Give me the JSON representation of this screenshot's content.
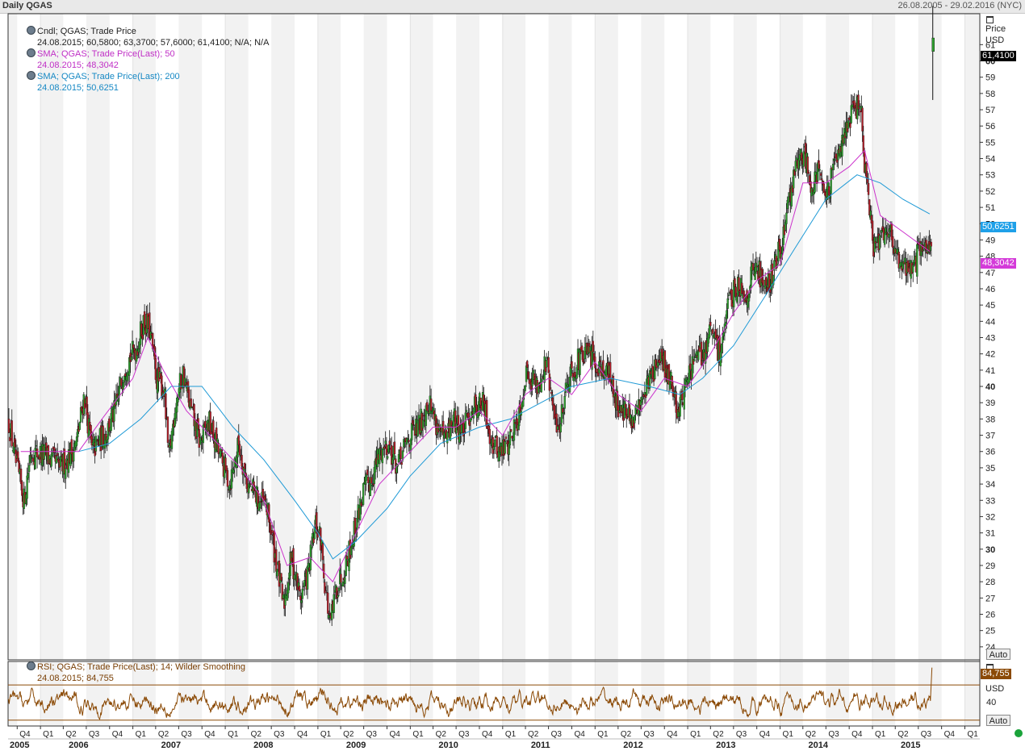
{
  "window": {
    "title": "Daily QGAS",
    "date_range": "26.08.2005 - 29.02.2016 (NYC)"
  },
  "legend": {
    "candle": {
      "label": "Cndl; QGAS; Trade Price",
      "values": "24.08.2015; 60,5800; 63,3700; 57,6000; 61,4100; N/A; N/A"
    },
    "sma50": {
      "label": "SMA; QGAS; Trade Price(Last);  50",
      "values": "24.08.2015; 48,3042"
    },
    "sma200": {
      "label": "SMA; QGAS; Trade Price(Last);  200",
      "values": "24.08.2015; 50,6251"
    },
    "rsi": {
      "label": "RSI; QGAS; Trade Price(Last);  14; Wilder Smoothing",
      "values": "24.08.2015; 84,755"
    }
  },
  "price_axis": {
    "header": "Price",
    "currency": "USD",
    "auto": "Auto",
    "tags": {
      "last": "61,4100",
      "sma200": "50,6251",
      "sma50": "48,3042"
    }
  },
  "rsi_axis": {
    "value_tag": "84,755",
    "currency": "USD",
    "tick": "40",
    "auto": "Auto"
  },
  "colors": {
    "up": "#2e9e2e",
    "down": "#b0202a",
    "sma50": "#cc33cc",
    "sma200": "#1f9ad6",
    "rsi": "#8b4a06",
    "band": "#f2f2f2",
    "last_tag": "#000000",
    "sma200_tag": "#1ea0e8",
    "sma50_tag": "#d43bd9"
  },
  "status": {
    "indicator": "green-dot"
  },
  "chart_data": [
    {
      "type": "candlestick",
      "ylim": [
        23.2,
        62.9
      ],
      "yticks": [
        24,
        25,
        26,
        27,
        28,
        29,
        30,
        31,
        32,
        33,
        34,
        35,
        36,
        37,
        38,
        39,
        40,
        41,
        42,
        43,
        44,
        45,
        46,
        47,
        48,
        49,
        50,
        51,
        52,
        53,
        54,
        55,
        56,
        57,
        58,
        59,
        60,
        61
      ],
      "bold_ticks": [
        30,
        40,
        50,
        60
      ],
      "x_range": [
        "2005-08-26",
        "2016-02-29"
      ],
      "quarters": [
        "Q4",
        "Q1",
        "Q2",
        "Q3",
        "Q4",
        "Q1",
        "Q2",
        "Q3",
        "Q4",
        "Q1",
        "Q2",
        "Q3",
        "Q4",
        "Q1",
        "Q2",
        "Q3",
        "Q4",
        "Q1",
        "Q2",
        "Q3",
        "Q4",
        "Q1",
        "Q2",
        "Q3",
        "Q4",
        "Q1",
        "Q2",
        "Q3",
        "Q4",
        "Q1",
        "Q2",
        "Q3",
        "Q4",
        "Q1",
        "Q2",
        "Q3",
        "Q4",
        "Q1",
        "Q2",
        "Q3",
        "Q4",
        "Q1"
      ],
      "years": [
        "2005",
        "2006",
        "2007",
        "2008",
        "2009",
        "2010",
        "2011",
        "2012",
        "2013",
        "2014",
        "2015"
      ],
      "close_path": [
        [
          "2005-08-26",
          37.8
        ],
        [
          "2005-09-20",
          35.5
        ],
        [
          "2005-10-25",
          33.0
        ],
        [
          "2005-11-20",
          36.0
        ],
        [
          "2006-01-15",
          35.8
        ],
        [
          "2006-03-20",
          35.0
        ],
        [
          "2006-05-20",
          36.5
        ],
        [
          "2006-06-20",
          39.5
        ],
        [
          "2006-07-20",
          36.0
        ],
        [
          "2006-09-15",
          37.2
        ],
        [
          "2006-10-20",
          38.5
        ],
        [
          "2006-11-25",
          41.2
        ],
        [
          "2007-01-15",
          42.5
        ],
        [
          "2007-02-10",
          44.0
        ],
        [
          "2007-03-05",
          43.5
        ],
        [
          "2007-04-01",
          40.5
        ],
        [
          "2007-05-01",
          39.8
        ],
        [
          "2007-05-20",
          35.5
        ],
        [
          "2007-06-15",
          39.0
        ],
        [
          "2007-07-15",
          40.8
        ],
        [
          "2007-08-15",
          38.5
        ],
        [
          "2007-09-20",
          36.5
        ],
        [
          "2007-10-25",
          37.8
        ],
        [
          "2007-12-01",
          36.0
        ],
        [
          "2008-01-15",
          34.0
        ],
        [
          "2008-02-20",
          36.5
        ],
        [
          "2008-03-25",
          34.0
        ],
        [
          "2008-05-10",
          33.0
        ],
        [
          "2008-06-10",
          32.5
        ],
        [
          "2008-07-20",
          29.0
        ],
        [
          "2008-08-15",
          26.5
        ],
        [
          "2008-09-15",
          29.5
        ],
        [
          "2008-10-20",
          27.0
        ],
        [
          "2008-11-20",
          28.5
        ],
        [
          "2008-12-20",
          31.5
        ],
        [
          "2009-01-10",
          30.5
        ],
        [
          "2009-01-25",
          28.0
        ],
        [
          "2009-02-15",
          25.2
        ],
        [
          "2009-03-10",
          27.5
        ],
        [
          "2009-04-15",
          29.0
        ],
        [
          "2009-05-20",
          31.0
        ],
        [
          "2009-06-25",
          33.5
        ],
        [
          "2009-08-01",
          34.5
        ],
        [
          "2009-09-01",
          36.0
        ],
        [
          "2009-10-01",
          36.5
        ],
        [
          "2009-11-10",
          35.0
        ],
        [
          "2009-12-20",
          36.8
        ],
        [
          "2010-02-01",
          37.5
        ],
        [
          "2010-03-10",
          39.2
        ],
        [
          "2010-04-10",
          37.8
        ],
        [
          "2010-05-15",
          36.5
        ],
        [
          "2010-06-15",
          38.0
        ],
        [
          "2010-07-25",
          37.2
        ],
        [
          "2010-09-01",
          38.8
        ],
        [
          "2010-10-10",
          39.0
        ],
        [
          "2010-11-20",
          36.5
        ],
        [
          "2010-12-20",
          36.0
        ],
        [
          "2011-01-20",
          36.5
        ],
        [
          "2011-02-25",
          38.0
        ],
        [
          "2011-04-05",
          41.0
        ],
        [
          "2011-05-15",
          40.0
        ],
        [
          "2011-06-20",
          41.5
        ],
        [
          "2011-07-20",
          38.0
        ],
        [
          "2011-08-10",
          37.5
        ],
        [
          "2011-09-10",
          40.5
        ],
        [
          "2011-10-20",
          41.5
        ],
        [
          "2011-12-01",
          42.0
        ],
        [
          "2012-01-01",
          41.5
        ],
        [
          "2012-02-15",
          41.0
        ],
        [
          "2012-03-25",
          39.0
        ],
        [
          "2012-04-25",
          38.5
        ],
        [
          "2012-05-25",
          37.5
        ],
        [
          "2012-07-01",
          39.5
        ],
        [
          "2012-08-15",
          41.0
        ],
        [
          "2012-09-20",
          41.5
        ],
        [
          "2012-10-20",
          40.5
        ],
        [
          "2012-11-20",
          38.5
        ],
        [
          "2012-12-20",
          40.0
        ],
        [
          "2013-01-20",
          41.5
        ],
        [
          "2013-03-01",
          42.0
        ],
        [
          "2013-04-01",
          43.5
        ],
        [
          "2013-05-01",
          42.0
        ],
        [
          "2013-06-10",
          45.0
        ],
        [
          "2013-07-15",
          46.5
        ],
        [
          "2013-08-15",
          45.5
        ],
        [
          "2013-09-20",
          47.5
        ],
        [
          "2013-10-20",
          46.5
        ],
        [
          "2013-11-20",
          46.5
        ],
        [
          "2013-12-20",
          48.0
        ],
        [
          "2014-01-20",
          50.0
        ],
        [
          "2014-02-20",
          53.0
        ],
        [
          "2014-04-01",
          54.5
        ],
        [
          "2014-05-01",
          52.5
        ],
        [
          "2014-06-01",
          53.5
        ],
        [
          "2014-07-01",
          51.5
        ],
        [
          "2014-08-01",
          53.5
        ],
        [
          "2014-09-01",
          55.5
        ],
        [
          "2014-10-01",
          56.5
        ],
        [
          "2014-11-10",
          57.5
        ],
        [
          "2014-12-01",
          53.0
        ],
        [
          "2015-01-01",
          48.5
        ],
        [
          "2015-02-01",
          49.5
        ],
        [
          "2015-03-01",
          50.0
        ],
        [
          "2015-04-01",
          48.0
        ],
        [
          "2015-05-01",
          47.5
        ],
        [
          "2015-06-01",
          47.2
        ],
        [
          "2015-07-10",
          48.5
        ],
        [
          "2015-08-15",
          48.8
        ]
      ],
      "last_bar": {
        "date": "2015-08-24",
        "open": 60.58,
        "high": 63.37,
        "low": 57.6,
        "close": 61.41
      },
      "sma50": [
        [
          "2005-10-15",
          36.0
        ],
        [
          "2006-06-01",
          36.0
        ],
        [
          "2006-09-01",
          38.0
        ],
        [
          "2007-01-01",
          40.5
        ],
        [
          "2007-03-01",
          43.0
        ],
        [
          "2007-05-01",
          41.0
        ],
        [
          "2007-08-01",
          38.5
        ],
        [
          "2007-11-01",
          37.0
        ],
        [
          "2008-03-01",
          35.0
        ],
        [
          "2008-06-01",
          33.0
        ],
        [
          "2008-09-01",
          29.0
        ],
        [
          "2008-12-01",
          29.5
        ],
        [
          "2009-03-01",
          28.0
        ],
        [
          "2009-06-01",
          31.0
        ],
        [
          "2009-09-01",
          34.0
        ],
        [
          "2010-01-01",
          36.0
        ],
        [
          "2010-04-01",
          37.5
        ],
        [
          "2010-07-01",
          37.5
        ],
        [
          "2010-10-01",
          38.5
        ],
        [
          "2011-01-01",
          37.0
        ],
        [
          "2011-04-01",
          39.5
        ],
        [
          "2011-07-01",
          40.5
        ],
        [
          "2011-10-01",
          39.5
        ],
        [
          "2012-01-01",
          41.5
        ],
        [
          "2012-04-01",
          39.5
        ],
        [
          "2012-07-01",
          38.5
        ],
        [
          "2012-10-01",
          40.5
        ],
        [
          "2013-01-01",
          40.0
        ],
        [
          "2013-04-01",
          42.0
        ],
        [
          "2013-07-01",
          44.5
        ],
        [
          "2013-10-01",
          46.5
        ],
        [
          "2014-01-01",
          47.5
        ],
        [
          "2014-04-01",
          52.5
        ],
        [
          "2014-07-01",
          52.5
        ],
        [
          "2014-10-01",
          53.5
        ],
        [
          "2014-12-01",
          54.5
        ],
        [
          "2015-02-01",
          50.5
        ],
        [
          "2015-05-01",
          49.5
        ],
        [
          "2015-08-15",
          48.3
        ]
      ],
      "sma200": [
        [
          "2006-06-01",
          36.0
        ],
        [
          "2006-10-01",
          36.5
        ],
        [
          "2007-02-01",
          38.0
        ],
        [
          "2007-06-01",
          40.0
        ],
        [
          "2007-10-01",
          40.0
        ],
        [
          "2008-02-01",
          37.5
        ],
        [
          "2008-06-01",
          35.5
        ],
        [
          "2008-10-01",
          33.0
        ],
        [
          "2009-01-01",
          31.0
        ],
        [
          "2009-03-01",
          29.4
        ],
        [
          "2009-06-01",
          30.5
        ],
        [
          "2009-10-01",
          32.5
        ],
        [
          "2010-01-01",
          34.5
        ],
        [
          "2010-05-01",
          36.5
        ],
        [
          "2010-10-01",
          37.5
        ],
        [
          "2011-02-01",
          38.0
        ],
        [
          "2011-06-01",
          39.0
        ],
        [
          "2011-10-01",
          40.0
        ],
        [
          "2012-03-01",
          40.5
        ],
        [
          "2012-08-01",
          40.0
        ],
        [
          "2012-12-01",
          39.5
        ],
        [
          "2013-03-01",
          40.5
        ],
        [
          "2013-07-01",
          42.5
        ],
        [
          "2013-11-01",
          45.5
        ],
        [
          "2014-03-01",
          48.5
        ],
        [
          "2014-07-01",
          51.5
        ],
        [
          "2014-11-01",
          53.0
        ],
        [
          "2015-02-01",
          52.5
        ],
        [
          "2015-05-01",
          51.5
        ],
        [
          "2015-08-15",
          50.6
        ]
      ]
    },
    {
      "type": "line",
      "series": [
        {
          "values": []
        }
      ],
      "ylim": [
        35,
        90
      ],
      "guides": [
        40,
        70
      ],
      "last": 84.755
    }
  ]
}
